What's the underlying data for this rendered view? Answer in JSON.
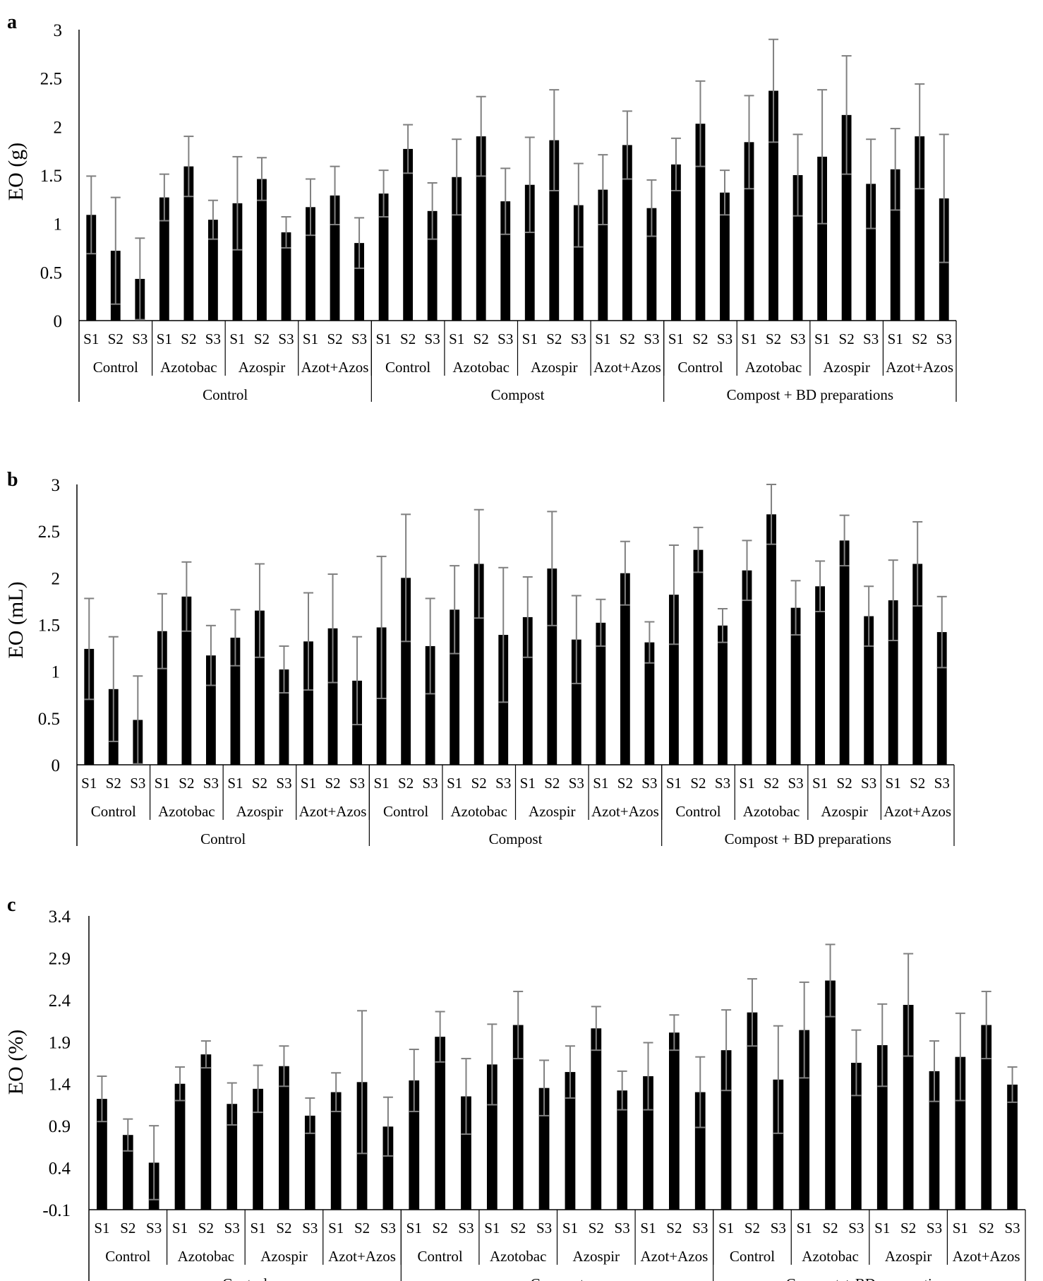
{
  "colors": {
    "bar": "#000000",
    "error_bar": "#808080",
    "axis": "#000000"
  },
  "chart_data": [
    {
      "type": "bar",
      "panel_letter": "a",
      "ylabel": "EO (g)",
      "ylim": [
        0,
        3
      ],
      "yticks": [
        "0",
        "0.5",
        "1",
        "1.5",
        "2",
        "2.5",
        "3"
      ],
      "grid": false,
      "legend": "none",
      "level1_labels": [
        "S1",
        "S2",
        "S3"
      ],
      "level2_labels": [
        "Control",
        "Azotobac",
        "Azospir",
        "Azot+Azos"
      ],
      "level3_labels": [
        "Control",
        "Compost",
        "Compost + BD preparations"
      ],
      "values": [
        1.09,
        0.72,
        0.43,
        1.27,
        1.59,
        1.04,
        1.21,
        1.46,
        0.91,
        1.17,
        1.29,
        0.8,
        1.31,
        1.77,
        1.13,
        1.48,
        1.9,
        1.23,
        1.4,
        1.86,
        1.19,
        1.35,
        1.81,
        1.16,
        1.61,
        2.03,
        1.32,
        1.84,
        2.37,
        1.5,
        1.69,
        2.12,
        1.41,
        1.56,
        1.9,
        1.26
      ],
      "errors": [
        0.4,
        0.55,
        0.42,
        0.24,
        0.31,
        0.2,
        0.48,
        0.22,
        0.16,
        0.29,
        0.3,
        0.26,
        0.24,
        0.25,
        0.29,
        0.39,
        0.41,
        0.34,
        0.49,
        0.52,
        0.43,
        0.36,
        0.35,
        0.29,
        0.27,
        0.44,
        0.23,
        0.48,
        0.53,
        0.42,
        0.69,
        0.61,
        0.46,
        0.42,
        0.54,
        0.66
      ]
    },
    {
      "type": "bar",
      "panel_letter": "b",
      "ylabel": "EO (mL)",
      "ylim": [
        0,
        3
      ],
      "yticks": [
        "0",
        "0.5",
        "1",
        "1.5",
        "2",
        "2.5",
        "3"
      ],
      "grid": false,
      "legend": "none",
      "level1_labels": [
        "S1",
        "S2",
        "S3"
      ],
      "level2_labels": [
        "Control",
        "Azotobac",
        "Azospir",
        "Azot+Azos"
      ],
      "level3_labels": [
        "Control",
        "Compost",
        "Compost + BD preparations"
      ],
      "values": [
        1.24,
        0.81,
        0.48,
        1.43,
        1.8,
        1.17,
        1.36,
        1.65,
        1.02,
        1.32,
        1.46,
        0.9,
        1.47,
        2.0,
        1.27,
        1.66,
        2.15,
        1.39,
        1.58,
        2.1,
        1.34,
        1.52,
        2.05,
        1.31,
        1.82,
        2.3,
        1.49,
        2.08,
        2.68,
        1.68,
        1.91,
        2.4,
        1.59,
        1.76,
        2.15,
        1.42
      ],
      "errors": [
        0.54,
        0.56,
        0.47,
        0.4,
        0.37,
        0.32,
        0.3,
        0.5,
        0.25,
        0.52,
        0.58,
        0.47,
        0.76,
        0.68,
        0.51,
        0.47,
        0.58,
        0.72,
        0.43,
        0.61,
        0.47,
        0.25,
        0.34,
        0.22,
        0.53,
        0.24,
        0.18,
        0.32,
        0.32,
        0.29,
        0.27,
        0.27,
        0.32,
        0.43,
        0.45,
        0.38
      ]
    },
    {
      "type": "bar",
      "panel_letter": "c",
      "ylabel": "EO (%)",
      "ylim": [
        -0.1,
        3.4
      ],
      "yticks": [
        "-0.1",
        "0.4",
        "0.9",
        "1.4",
        "1.9",
        "2.4",
        "2.9",
        "3.4"
      ],
      "grid": false,
      "legend": "none",
      "level1_labels": [
        "S1",
        "S2",
        "S3"
      ],
      "level2_labels": [
        "Control",
        "Azotobac",
        "Azospir",
        "Azot+Azos"
      ],
      "level3_labels": [
        "Control",
        "Compost",
        "Compost + BD preparations"
      ],
      "values": [
        1.22,
        0.79,
        0.46,
        1.4,
        1.75,
        1.16,
        1.34,
        1.61,
        1.02,
        1.3,
        1.42,
        0.89,
        1.44,
        1.96,
        1.25,
        1.63,
        2.1,
        1.35,
        1.54,
        2.06,
        1.32,
        1.49,
        2.01,
        1.3,
        1.8,
        2.25,
        1.45,
        2.04,
        2.63,
        1.65,
        1.86,
        2.34,
        1.55,
        1.72,
        2.1,
        1.39
      ],
      "errors": [
        0.27,
        0.19,
        0.44,
        0.2,
        0.16,
        0.25,
        0.28,
        0.24,
        0.21,
        0.23,
        0.85,
        0.35,
        0.37,
        0.3,
        0.45,
        0.48,
        0.4,
        0.33,
        0.31,
        0.26,
        0.23,
        0.4,
        0.21,
        0.42,
        0.48,
        0.4,
        0.64,
        0.57,
        0.43,
        0.39,
        0.49,
        0.61,
        0.36,
        0.52,
        0.4,
        0.21
      ]
    }
  ]
}
